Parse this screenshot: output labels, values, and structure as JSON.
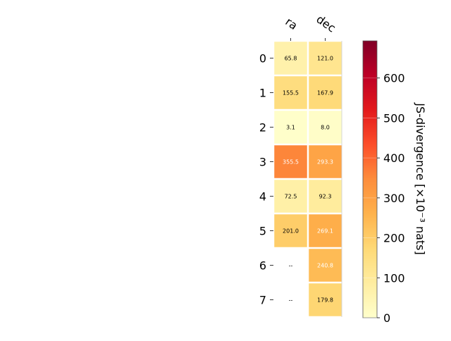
{
  "chart_data": {
    "type": "heatmap",
    "columns": [
      "ra",
      "dec"
    ],
    "rows": [
      "0",
      "1",
      "2",
      "3",
      "4",
      "5",
      "6",
      "7"
    ],
    "values": [
      [
        65.8,
        121.0
      ],
      [
        155.5,
        167.9
      ],
      [
        3.1,
        8.0
      ],
      [
        355.5,
        293.3
      ],
      [
        72.5,
        92.3
      ],
      [
        201.0,
        269.1
      ],
      [
        null,
        240.8
      ],
      [
        null,
        179.8
      ]
    ],
    "cell_labels": [
      [
        "65.8",
        "121.0"
      ],
      [
        "155.5",
        "167.9"
      ],
      [
        "3.1",
        "8.0"
      ],
      [
        "355.5",
        "293.3"
      ],
      [
        "72.5",
        "92.3"
      ],
      [
        "201.0",
        "269.1"
      ],
      [
        "--",
        "240.8"
      ],
      [
        "--",
        "179.8"
      ]
    ],
    "colorbar": {
      "label": "JS-divergence [×10⁻³ nats]",
      "range": [
        0,
        693
      ],
      "ticks": [
        0,
        100,
        200,
        300,
        400,
        500,
        600
      ],
      "tick_labels": [
        "0",
        "100",
        "200",
        "300",
        "400",
        "500",
        "600"
      ],
      "colormap": "YlOrRd"
    },
    "missing_color": "#ffffff",
    "grid": false
  }
}
